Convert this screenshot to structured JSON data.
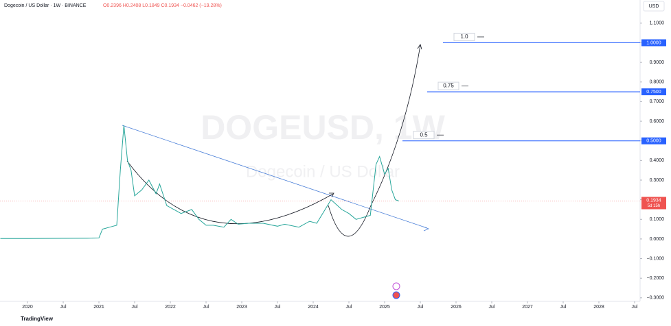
{
  "chart_data": {
    "type": "line",
    "title": "Dogecoin / US Dollar · 1W · BINANCE",
    "subtitle": "O0.2396 H0.2408 L0.1849 C0.1934 −0.0462 (−19.28%)",
    "watermark": "DOGEUSD, 1W",
    "watermark_sub": "Dogecoin / US Dollar",
    "currency": "USD",
    "brand": "TradingView",
    "series": [
      {
        "name": "DOGEUSD",
        "color": "#26a69a",
        "x": [
          2019.62,
          2020.0,
          2020.5,
          2020.9,
          2021.0,
          2021.05,
          2021.15,
          2021.25,
          2021.3,
          2021.35,
          2021.4,
          2021.45,
          2021.5,
          2021.6,
          2021.7,
          2021.8,
          2021.85,
          2021.95,
          2022.05,
          2022.15,
          2022.3,
          2022.4,
          2022.5,
          2022.6,
          2022.75,
          2022.85,
          2022.95,
          2023.1,
          2023.3,
          2023.5,
          2023.6,
          2023.8,
          2023.95,
          2024.05,
          2024.2,
          2024.25,
          2024.4,
          2024.5,
          2024.6,
          2024.7,
          2024.8,
          2024.88,
          2024.93,
          2025.0,
          2025.05,
          2025.1,
          2025.15,
          2025.2
        ],
        "values": [
          0.002,
          0.002,
          0.003,
          0.004,
          0.005,
          0.05,
          0.06,
          0.07,
          0.35,
          0.58,
          0.4,
          0.35,
          0.22,
          0.25,
          0.3,
          0.23,
          0.28,
          0.17,
          0.15,
          0.13,
          0.15,
          0.1,
          0.07,
          0.07,
          0.06,
          0.1,
          0.075,
          0.08,
          0.08,
          0.065,
          0.075,
          0.06,
          0.09,
          0.08,
          0.17,
          0.2,
          0.15,
          0.13,
          0.1,
          0.11,
          0.12,
          0.38,
          0.42,
          0.33,
          0.36,
          0.25,
          0.2,
          0.1934
        ]
      }
    ],
    "last_price": {
      "value": 0.1934,
      "label": "0.1934",
      "countdown": "5d 15h"
    },
    "levels": [
      {
        "value": 1,
        "label": "1.0",
        "price_label": "1.0000"
      },
      {
        "value": 0.75,
        "label": "0.75",
        "price_label": "0.7500"
      },
      {
        "value": 0.5,
        "label": "0.5",
        "price_label": "0.5000"
      }
    ],
    "xlim": [
      2019.615,
      2028.577
    ],
    "ylim": [
      -0.318,
      1.218
    ],
    "xticks": [
      2020,
      {
        "value": 2020.5,
        "label": "Jul"
      },
      2021,
      {
        "value": 2021.5,
        "label": "Jul"
      },
      2022,
      {
        "value": 2022.5,
        "label": "Jul"
      },
      2023,
      {
        "value": 2023.5,
        "label": "Jul"
      },
      2024,
      {
        "value": 2024.5,
        "label": "Jul"
      },
      2025,
      {
        "value": 2025.5,
        "label": "Jul"
      },
      2026,
      {
        "value": 2026.5,
        "label": "Jul"
      },
      2027,
      {
        "value": 2027.5,
        "label": "Jul"
      },
      2028,
      {
        "value": 2028.5,
        "label": "Jul"
      }
    ],
    "yticks": [
      {
        "value": 1.1,
        "label": "1.1000"
      },
      {
        "value": 1,
        "label": "1.0000"
      },
      {
        "value": 0.9,
        "label": "0.9000"
      },
      {
        "value": 0.8,
        "label": "0.8000"
      },
      {
        "value": 0.7,
        "label": "0.7000"
      },
      {
        "value": 0.6,
        "label": "0.6000"
      },
      {
        "value": 0.5,
        "label": "0.5000"
      },
      {
        "value": 0.4,
        "label": "0.4000"
      },
      {
        "value": 0.3,
        "label": "0.3000"
      },
      {
        "value": 0.2,
        "label": "0.2000"
      },
      {
        "value": 0.1,
        "label": "0.1000"
      },
      {
        "value": 0,
        "label": "0.0000"
      },
      {
        "value": -0.1,
        "label": "−0.1000"
      },
      {
        "value": -0.2,
        "label": "−0.2000"
      },
      {
        "value": -0.3,
        "label": "−0.3000"
      }
    ]
  }
}
